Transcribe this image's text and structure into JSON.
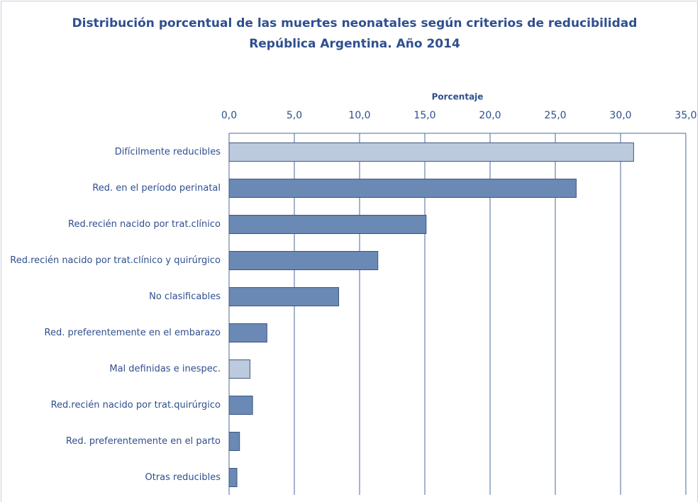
{
  "chart_data": {
    "type": "bar",
    "orientation": "horizontal",
    "title": "Distribución porcentual de las muertes neonatales según criterios de reducibilidad",
    "subtitle": "República Argentina. Año 2014",
    "x_label": "Porcentaje",
    "categories": [
      "Difícilmente reducibles",
      "Red. en el período perinatal",
      "Red.recién nacido por trat.clínico",
      "Red.recién nacido por trat.clínico y quirúrgico",
      "No clasificables",
      "Red. preferentemente en el embarazo",
      "Mal definidas e inespec.",
      "Red.recién nacido por trat.quirúrgico",
      "Red. preferentemente en el parto",
      "Otras reducibles"
    ],
    "values": [
      31.0,
      26.6,
      15.1,
      11.4,
      8.4,
      2.9,
      1.6,
      1.8,
      0.8,
      0.6
    ],
    "colors": [
      "#bccadd",
      "#6a89b4",
      "#6a89b4",
      "#6a89b4",
      "#6a89b4",
      "#6a89b4",
      "#bccadd",
      "#6a89b4",
      "#6a89b4",
      "#6a89b4"
    ],
    "xlim": [
      0,
      35
    ],
    "xticks": [
      {
        "value": 0,
        "label": "0,0"
      },
      {
        "value": 5,
        "label": "5,0"
      },
      {
        "value": 10,
        "label": "10,0"
      },
      {
        "value": 15,
        "label": "15,0"
      },
      {
        "value": 20,
        "label": "20,0"
      },
      {
        "value": 25,
        "label": "25,0"
      },
      {
        "value": 30,
        "label": "30,0"
      },
      {
        "value": 35,
        "label": "35,0"
      }
    ],
    "grid": true
  }
}
